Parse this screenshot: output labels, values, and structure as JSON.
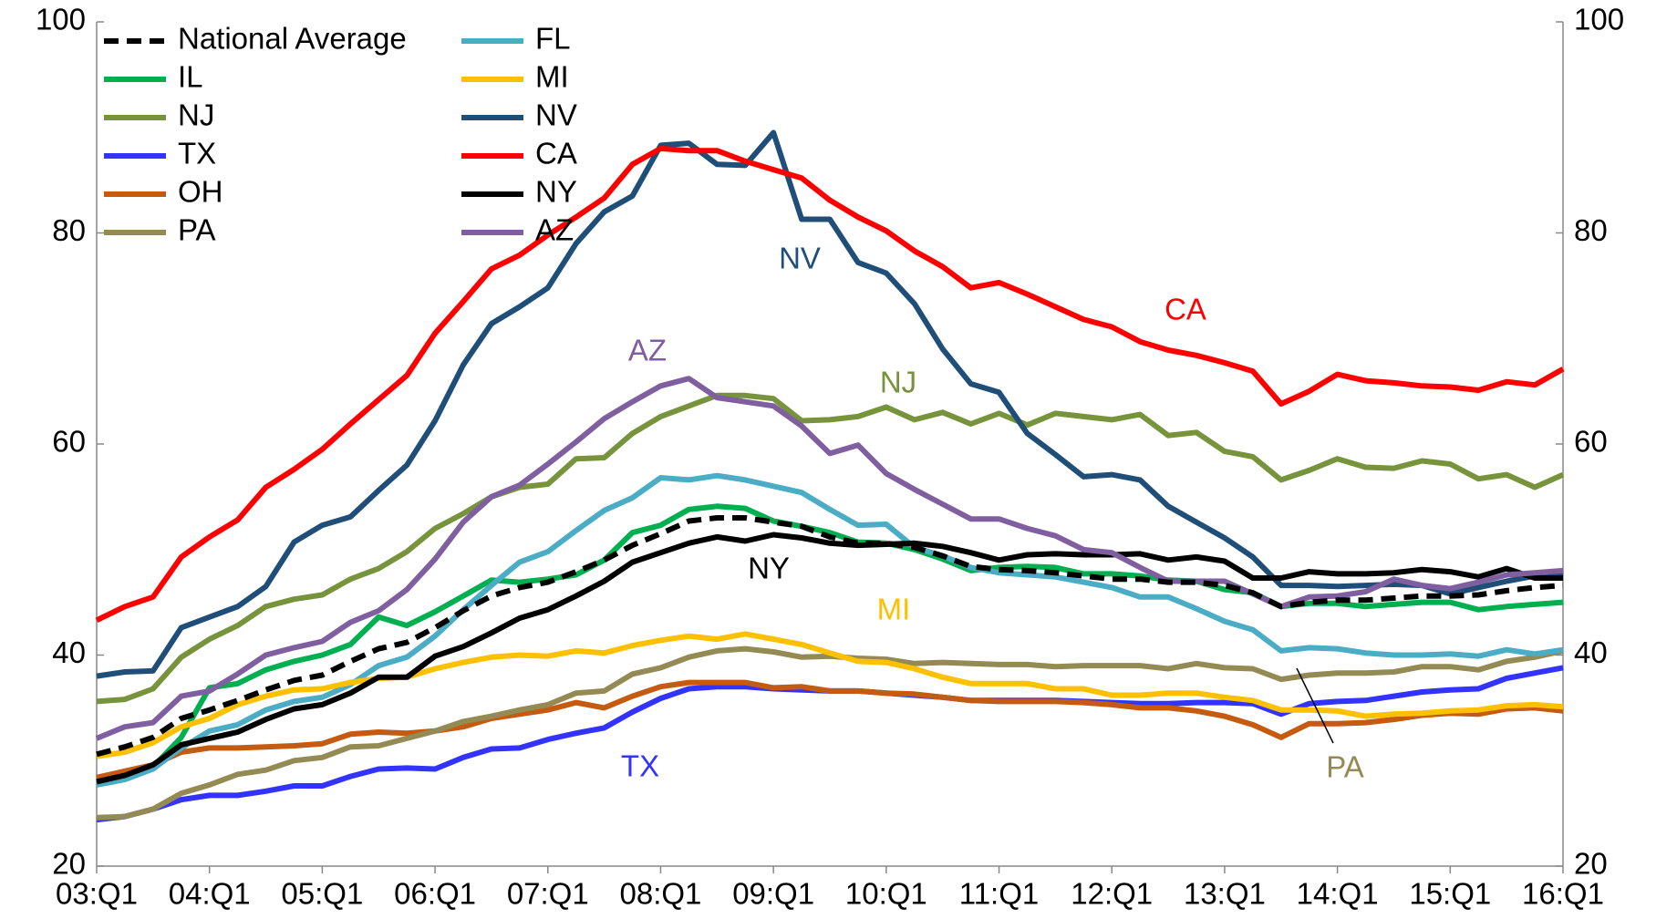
{
  "chart_data": {
    "type": "line",
    "categories": [
      "03:Q1",
      null,
      null,
      null,
      "04:Q1",
      null,
      null,
      null,
      "05:Q1",
      null,
      null,
      null,
      "06:Q1",
      null,
      null,
      null,
      "07:Q1",
      null,
      null,
      null,
      "08:Q1",
      null,
      null,
      null,
      "09:Q1",
      null,
      null,
      null,
      "10:Q1",
      null,
      null,
      null,
      "11:Q1",
      null,
      null,
      null,
      "12:Q1",
      null,
      null,
      null,
      "13:Q1",
      null,
      null,
      null,
      "14:Q1",
      null,
      null,
      null,
      "15:Q1",
      null,
      null,
      null,
      "16:Q1"
    ],
    "ylim": [
      20,
      100
    ],
    "yticks": [
      20,
      40,
      60,
      80,
      100
    ],
    "y2lim": [
      20,
      100
    ],
    "y2ticks": [
      20,
      40,
      60,
      80,
      100
    ],
    "grid": false,
    "legend": "upper left",
    "series": [
      {
        "name": "National Average",
        "color": "#000000",
        "dashed": true,
        "values": [
          30.6,
          31.3,
          32.2,
          34.0,
          34.8,
          35.7,
          36.7,
          37.6,
          38.1,
          39.4,
          40.6,
          41.2,
          42.6,
          44.2,
          45.6,
          46.4,
          46.9,
          47.9,
          49.0,
          50.4,
          51.5,
          52.7,
          53.0,
          53.0,
          52.6,
          52.2,
          51.2,
          50.6,
          50.6,
          50.2,
          49.4,
          48.4,
          48.1,
          48.0,
          47.8,
          47.5,
          47.2,
          47.2,
          46.9,
          46.9,
          46.6,
          45.9,
          44.6,
          45.0,
          45.2,
          45.2,
          45.4,
          45.6,
          45.6,
          45.7,
          46.1,
          46.4,
          46.6
        ]
      },
      {
        "name": "IL",
        "color": "#00b050",
        "values": [
          28.2,
          28.8,
          29.4,
          32.2,
          36.9,
          37.3,
          38.6,
          39.4,
          40.0,
          41.0,
          43.6,
          42.8,
          44.1,
          45.6,
          47.1,
          46.9,
          47.2,
          47.6,
          49.0,
          51.6,
          52.3,
          53.8,
          54.1,
          53.9,
          52.7,
          52.2,
          51.6,
          50.7,
          50.6,
          50.0,
          49.1,
          48.0,
          48.3,
          48.4,
          48.3,
          47.7,
          47.7,
          47.5,
          47.1,
          47.0,
          46.2,
          45.9,
          44.6,
          44.9,
          44.9,
          44.6,
          44.8,
          45.0,
          45.0,
          44.3,
          44.6,
          44.8,
          45.0
        ]
      },
      {
        "name": "NJ",
        "color": "#77933c",
        "values": [
          35.6,
          35.8,
          36.8,
          39.8,
          41.5,
          42.8,
          44.6,
          45.3,
          45.7,
          47.2,
          48.2,
          49.8,
          52.0,
          53.4,
          55.0,
          55.9,
          56.2,
          58.6,
          58.7,
          61.0,
          62.6,
          63.6,
          64.6,
          64.6,
          64.3,
          62.2,
          62.3,
          62.6,
          63.5,
          62.3,
          63.0,
          61.9,
          62.9,
          61.8,
          62.9,
          62.6,
          62.3,
          62.8,
          60.8,
          61.1,
          59.3,
          58.8,
          56.6,
          57.5,
          58.6,
          57.8,
          57.7,
          58.4,
          58.1,
          56.7,
          57.1,
          55.9,
          57.1
        ]
      },
      {
        "name": "TX",
        "color": "#3333ff",
        "values": [
          24.4,
          24.7,
          25.4,
          26.3,
          26.7,
          26.7,
          27.1,
          27.6,
          27.6,
          28.5,
          29.2,
          29.3,
          29.2,
          30.3,
          31.1,
          31.2,
          32.0,
          32.6,
          33.1,
          34.6,
          35.9,
          36.8,
          37.0,
          37.0,
          36.8,
          36.7,
          36.6,
          36.6,
          36.4,
          36.2,
          36.0,
          35.7,
          35.7,
          35.7,
          35.7,
          35.6,
          35.5,
          35.4,
          35.4,
          35.5,
          35.5,
          35.4,
          34.4,
          35.4,
          35.6,
          35.7,
          36.1,
          36.5,
          36.7,
          36.8,
          37.8,
          38.3,
          38.8
        ]
      },
      {
        "name": "OH",
        "color": "#c55a11",
        "values": [
          28.4,
          29.0,
          29.6,
          30.8,
          31.2,
          31.2,
          31.3,
          31.4,
          31.6,
          32.5,
          32.7,
          32.6,
          32.8,
          33.2,
          34.0,
          34.4,
          34.8,
          35.5,
          35.0,
          36.1,
          37.0,
          37.4,
          37.4,
          37.4,
          36.9,
          37.0,
          36.6,
          36.6,
          36.4,
          36.3,
          36.0,
          35.7,
          35.6,
          35.6,
          35.6,
          35.5,
          35.3,
          35.0,
          35.0,
          34.7,
          34.2,
          33.4,
          32.2,
          33.5,
          33.5,
          33.6,
          33.9,
          34.3,
          34.5,
          34.4,
          34.9,
          35.0,
          34.7
        ]
      },
      {
        "name": "PA",
        "color": "#948a54",
        "values": [
          24.6,
          24.7,
          25.4,
          26.9,
          27.7,
          28.7,
          29.1,
          30.0,
          30.3,
          31.3,
          31.4,
          32.1,
          32.8,
          33.7,
          34.2,
          34.8,
          35.3,
          36.4,
          36.6,
          38.2,
          38.8,
          39.8,
          40.4,
          40.6,
          40.3,
          39.8,
          39.9,
          39.7,
          39.6,
          39.2,
          39.3,
          39.2,
          39.1,
          39.1,
          38.9,
          39.0,
          39.0,
          39.0,
          38.7,
          39.2,
          38.8,
          38.7,
          37.7,
          38.1,
          38.3,
          38.3,
          38.4,
          38.9,
          38.9,
          38.6,
          39.4,
          39.8,
          40.4
        ]
      },
      {
        "name": "FL",
        "color": "#4bacc6",
        "values": [
          27.7,
          28.2,
          29.2,
          31.2,
          32.8,
          33.4,
          34.8,
          35.6,
          36.0,
          37.2,
          39.0,
          39.8,
          41.8,
          44.3,
          46.6,
          48.8,
          49.8,
          51.8,
          53.7,
          54.9,
          56.8,
          56.6,
          57.0,
          56.6,
          56.0,
          55.4,
          53.8,
          52.3,
          52.4,
          50.2,
          49.4,
          48.3,
          47.8,
          47.6,
          47.4,
          46.9,
          46.4,
          45.5,
          45.5,
          44.4,
          43.2,
          42.4,
          40.4,
          40.7,
          40.6,
          40.2,
          40.0,
          40.0,
          40.1,
          39.9,
          40.5,
          40.1,
          40.5
        ]
      },
      {
        "name": "MI",
        "color": "#ffc000",
        "values": [
          30.4,
          30.8,
          31.7,
          33.2,
          34.0,
          35.3,
          36.1,
          36.7,
          36.8,
          37.4,
          37.8,
          37.9,
          38.7,
          39.3,
          39.8,
          40.0,
          39.9,
          40.4,
          40.2,
          40.9,
          41.4,
          41.8,
          41.5,
          42.0,
          41.5,
          41.0,
          40.2,
          39.4,
          39.3,
          38.7,
          37.9,
          37.3,
          37.3,
          37.3,
          36.8,
          36.8,
          36.2,
          36.2,
          36.4,
          36.4,
          36.0,
          35.7,
          34.8,
          34.8,
          34.7,
          34.2,
          34.4,
          34.5,
          34.7,
          34.8,
          35.2,
          35.3,
          35.1
        ]
      },
      {
        "name": "NV",
        "color": "#1f4e79",
        "values": [
          38.0,
          38.4,
          38.5,
          42.6,
          43.6,
          44.6,
          46.5,
          50.7,
          52.3,
          53.1,
          55.6,
          58.0,
          62.2,
          67.5,
          71.4,
          73.0,
          74.8,
          79.0,
          82.0,
          83.5,
          88.3,
          88.5,
          86.5,
          86.4,
          89.5,
          81.3,
          81.3,
          77.2,
          76.2,
          73.3,
          69.0,
          65.7,
          64.9,
          61.0,
          59.0,
          56.9,
          57.1,
          56.6,
          54.1,
          52.6,
          51.1,
          49.3,
          46.6,
          46.6,
          46.5,
          46.6,
          46.7,
          46.6,
          45.8,
          46.4,
          47.0,
          47.5,
          47.8
        ]
      },
      {
        "name": "CA",
        "color": "#ff0000",
        "values": [
          43.3,
          44.6,
          45.5,
          49.3,
          51.2,
          52.8,
          55.9,
          57.6,
          59.5,
          61.9,
          64.2,
          66.5,
          70.5,
          73.5,
          76.6,
          77.9,
          79.8,
          81.5,
          83.3,
          86.5,
          88.0,
          87.8,
          87.8,
          86.8,
          86.0,
          85.2,
          83.1,
          81.5,
          80.2,
          78.3,
          76.8,
          74.8,
          75.3,
          74.2,
          73.0,
          71.8,
          71.1,
          69.7,
          68.9,
          68.4,
          67.7,
          66.9,
          63.8,
          65.0,
          66.6,
          66.0,
          65.8,
          65.5,
          65.4,
          65.1,
          65.9,
          65.6,
          67.1
        ]
      },
      {
        "name": "NY",
        "color": "#000000",
        "values": [
          28.0,
          28.6,
          29.6,
          31.5,
          32.1,
          32.7,
          33.9,
          34.9,
          35.3,
          36.4,
          37.9,
          37.9,
          39.9,
          40.8,
          42.1,
          43.5,
          44.3,
          45.6,
          47.0,
          48.8,
          49.7,
          50.6,
          51.2,
          50.8,
          51.4,
          51.1,
          50.6,
          50.4,
          50.5,
          50.6,
          50.3,
          49.7,
          49.0,
          49.5,
          49.6,
          49.5,
          49.5,
          49.6,
          49.0,
          49.3,
          48.9,
          47.3,
          47.3,
          47.9,
          47.7,
          47.7,
          47.8,
          48.1,
          47.9,
          47.4,
          48.2,
          47.3,
          47.3
        ]
      },
      {
        "name": "AZ",
        "color": "#7f5f9f",
        "values": [
          32.1,
          33.2,
          33.6,
          36.1,
          36.6,
          38.2,
          40.0,
          40.7,
          41.3,
          43.1,
          44.2,
          46.2,
          49.1,
          52.6,
          55.0,
          56.1,
          58.1,
          60.2,
          62.4,
          64.0,
          65.5,
          66.2,
          64.4,
          64.0,
          63.6,
          61.7,
          59.1,
          59.9,
          57.2,
          55.7,
          54.3,
          52.9,
          52.9,
          52.0,
          51.3,
          50.0,
          49.7,
          48.3,
          47.0,
          47.0,
          47.0,
          45.8,
          44.6,
          45.5,
          45.6,
          46.0,
          47.2,
          46.6,
          46.3,
          46.9,
          47.6,
          47.8,
          48.0
        ]
      }
    ],
    "annotations": [
      {
        "text": "NV",
        "color": "#1f4e79"
      },
      {
        "text": "CA",
        "color": "#ff0000"
      },
      {
        "text": "AZ",
        "color": "#7f5f9f"
      },
      {
        "text": "NJ",
        "color": "#77933c"
      },
      {
        "text": "NY",
        "color": "#000000"
      },
      {
        "text": "MI",
        "color": "#ffc000"
      },
      {
        "text": "TX",
        "color": "#3333ff"
      },
      {
        "text": "PA",
        "color": "#948a54"
      }
    ]
  }
}
